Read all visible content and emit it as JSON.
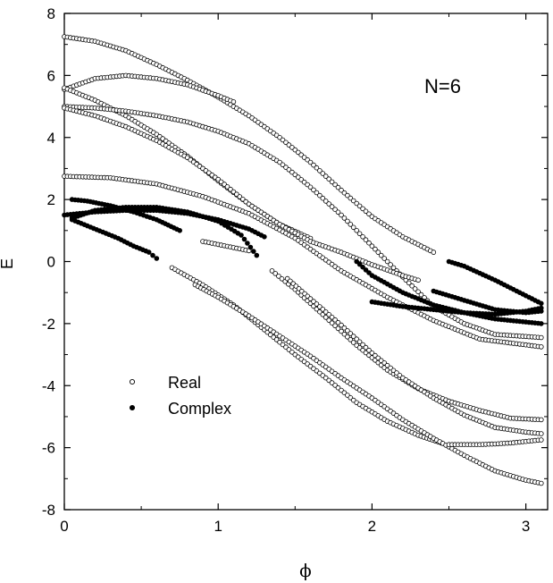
{
  "chart_data": {
    "type": "scatter",
    "xlabel": "ϕ",
    "ylabel": "E",
    "xlim": [
      0,
      3.1416
    ],
    "ylim": [
      -8,
      8
    ],
    "xticks": [
      0,
      1,
      2,
      3
    ],
    "yticks": [
      -8,
      -6,
      -4,
      -2,
      0,
      2,
      4,
      6,
      8
    ],
    "annotation": "N=6",
    "legend": {
      "position": "lower-left",
      "items": [
        "Real",
        "Complex"
      ]
    },
    "grid": false,
    "series": [
      {
        "name": "Real",
        "marker": "open-circle",
        "curves": [
          {
            "x": [
              0.0,
              0.2,
              0.4,
              0.6,
              0.8,
              1.0,
              1.2,
              1.4,
              1.6,
              1.8,
              2.0,
              2.2,
              2.4
            ],
            "y": [
              7.25,
              7.1,
              6.8,
              6.35,
              5.85,
              5.3,
              4.7,
              4.0,
              3.2,
              2.3,
              1.45,
              0.8,
              0.3
            ]
          },
          {
            "x": [
              0.0,
              0.2,
              0.4,
              0.6,
              0.8,
              1.0,
              1.1
            ],
            "y": [
              5.55,
              5.9,
              6.0,
              5.9,
              5.7,
              5.35,
              5.15
            ]
          },
          {
            "x": [
              0.0,
              0.2,
              0.4,
              0.6,
              0.8,
              1.0,
              1.2,
              1.4,
              1.6
            ],
            "y": [
              5.6,
              5.2,
              4.7,
              4.1,
              3.4,
              2.6,
              1.85,
              1.2,
              0.75
            ]
          },
          {
            "x": [
              0.0,
              0.2,
              0.4,
              0.6,
              0.8,
              1.0,
              1.2,
              1.4,
              1.6,
              1.8,
              2.0,
              2.2,
              2.4,
              2.6,
              2.8,
              3.1
            ],
            "y": [
              5.0,
              4.95,
              4.85,
              4.7,
              4.5,
              4.2,
              3.8,
              3.2,
              2.4,
              1.5,
              0.5,
              -0.5,
              -1.45,
              -2.0,
              -2.35,
              -2.45
            ]
          },
          {
            "x": [
              0.0,
              0.2,
              0.4,
              0.6,
              0.8,
              1.0,
              1.2,
              1.4,
              1.6,
              1.8,
              2.0,
              2.2,
              2.3
            ],
            "y": [
              4.95,
              4.7,
              4.35,
              3.9,
              3.35,
              2.65,
              1.85,
              1.2,
              0.65,
              0.3,
              -0.1,
              -0.45,
              -0.6
            ]
          },
          {
            "x": [
              0.0,
              0.3,
              0.6,
              0.9,
              1.2,
              1.5,
              1.8,
              2.1,
              2.4,
              2.7,
              3.1
            ],
            "y": [
              2.75,
              2.7,
              2.5,
              2.1,
              1.55,
              0.75,
              -0.3,
              -1.15,
              -1.9,
              -2.5,
              -2.75
            ]
          },
          {
            "x": [
              0.9,
              1.0,
              1.1,
              1.2
            ],
            "y": [
              0.65,
              0.55,
              0.45,
              0.35
            ]
          },
          {
            "x": [
              1.35,
              1.5,
              1.7,
              1.9,
              2.1,
              2.3,
              2.5,
              2.7,
              2.9,
              3.1
            ],
            "y": [
              -0.3,
              -0.9,
              -1.8,
              -2.7,
              -3.5,
              -4.1,
              -4.5,
              -4.8,
              -5.05,
              -5.1
            ]
          },
          {
            "x": [
              1.45,
              1.6,
              1.8,
              2.0,
              2.2,
              2.4,
              2.6,
              2.8,
              3.0,
              3.1
            ],
            "y": [
              -0.55,
              -1.2,
              -2.05,
              -2.95,
              -3.75,
              -4.4,
              -4.95,
              -5.35,
              -5.5,
              -5.55
            ]
          },
          {
            "x": [
              0.7,
              0.9,
              1.1,
              1.3,
              1.5,
              1.7,
              1.9,
              2.1,
              2.3,
              2.45
            ],
            "y": [
              -0.2,
              -0.75,
              -1.4,
              -2.2,
              -3.0,
              -3.75,
              -4.55,
              -5.15,
              -5.6,
              -5.85
            ]
          },
          {
            "x": [
              0.85,
              1.0,
              1.2,
              1.4,
              1.6,
              1.8,
              2.0,
              2.2,
              2.4,
              2.6,
              2.8,
              3.0,
              3.1
            ],
            "y": [
              -0.75,
              -1.15,
              -1.75,
              -2.4,
              -3.05,
              -3.75,
              -4.4,
              -5.1,
              -5.7,
              -6.25,
              -6.75,
              -7.05,
              -7.15
            ]
          },
          {
            "x": [
              2.5,
              2.6,
              2.7,
              2.8,
              2.9,
              3.0,
              3.1
            ],
            "y": [
              -5.9,
              -5.9,
              -5.9,
              -5.88,
              -5.85,
              -5.8,
              -5.75
            ]
          }
        ]
      },
      {
        "name": "Complex",
        "marker": "filled-circle",
        "curves": [
          {
            "x": [
              0.05,
              0.15,
              0.3,
              0.45,
              0.6,
              0.75
            ],
            "y": [
              2.0,
              1.95,
              1.8,
              1.6,
              1.35,
              1.0
            ]
          },
          {
            "x": [
              0.0,
              0.2,
              0.4,
              0.6,
              0.8,
              1.0,
              1.2,
              1.3
            ],
            "y": [
              1.5,
              1.6,
              1.65,
              1.65,
              1.55,
              1.35,
              1.05,
              0.8
            ]
          },
          {
            "x": [
              0.05,
              0.2,
              0.4,
              0.6,
              0.8,
              1.0,
              1.15,
              1.25
            ],
            "y": [
              1.4,
              1.65,
              1.75,
              1.75,
              1.6,
              1.3,
              0.85,
              0.2
            ]
          },
          {
            "x": [
              0.05,
              0.15,
              0.25,
              0.35,
              0.45,
              0.55,
              0.6
            ],
            "y": [
              1.35,
              1.15,
              0.95,
              0.75,
              0.5,
              0.3,
              0.1
            ]
          },
          {
            "x": [
              1.9,
              2.0,
              2.2,
              2.4,
              2.6,
              2.8,
              3.0,
              3.1
            ],
            "y": [
              0.0,
              -0.45,
              -1.0,
              -1.4,
              -1.65,
              -1.85,
              -1.95,
              -2.0
            ]
          },
          {
            "x": [
              2.4,
              2.6,
              2.8,
              3.0,
              3.1
            ],
            "y": [
              -0.95,
              -1.25,
              -1.55,
              -1.65,
              -1.6
            ]
          },
          {
            "x": [
              2.5,
              2.6,
              2.8,
              3.0,
              3.1
            ],
            "y": [
              0.0,
              -0.15,
              -0.6,
              -1.1,
              -1.35
            ]
          },
          {
            "x": [
              2.0,
              2.2,
              2.4,
              2.6,
              2.8,
              3.0,
              3.1
            ],
            "y": [
              -1.3,
              -1.45,
              -1.55,
              -1.65,
              -1.7,
              -1.6,
              -1.5
            ]
          }
        ]
      }
    ]
  }
}
